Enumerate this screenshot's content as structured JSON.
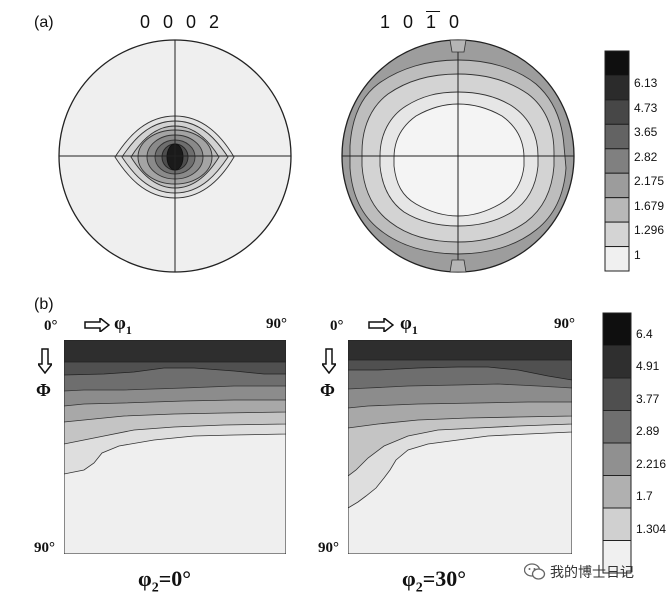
{
  "panel_a": {
    "label": "(a)",
    "pole_figures": [
      {
        "title": "0 0 0 2"
      },
      {
        "title_before": "1 0 ",
        "title_bar": "1",
        "title_after": " 0"
      }
    ],
    "legend": [
      "6.13",
      "4.73",
      "3.65",
      "2.82",
      "2.175",
      "1.679",
      "1.296",
      "1"
    ]
  },
  "panel_b": {
    "label": "(b)",
    "odf_sections": [
      {
        "x_start": "0°",
        "x_end": "90°",
        "x_axis": "φ",
        "x_sub": "1",
        "y_axis": "Φ",
        "y_end": "90°",
        "caption_pre": "φ",
        "caption_sub": "2",
        "caption_post": "=0°"
      },
      {
        "x_start": "0°",
        "x_end": "90°",
        "x_axis": "φ",
        "x_sub": "1",
        "y_axis": "Φ",
        "y_end": "90°",
        "caption_pre": "φ",
        "caption_sub": "2",
        "caption_post": "=30°"
      }
    ],
    "legend": [
      "6.4",
      "4.91",
      "3.77",
      "2.89",
      "2.216",
      "1.7",
      "1.304"
    ]
  },
  "watermark": {
    "text": "我的博士日记"
  }
}
